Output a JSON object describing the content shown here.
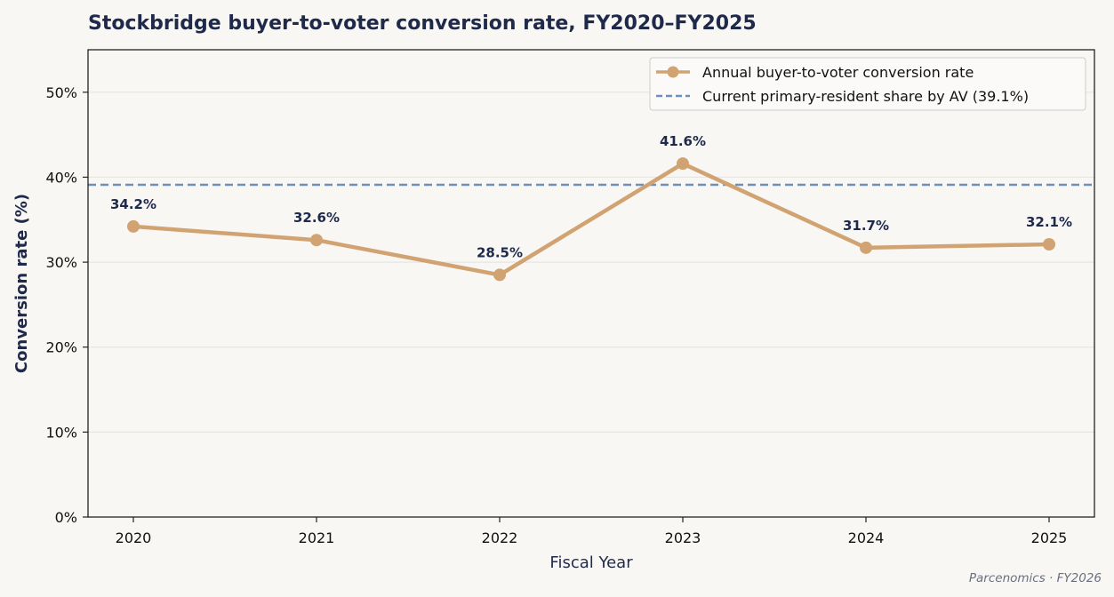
{
  "colors": {
    "background": "#f9f7f4",
    "line": "#d1a372",
    "reference": "#6c90bd",
    "text_dark": "#1f2a4b",
    "grid": "#e7e5e2"
  },
  "chart_data": {
    "type": "line",
    "title": "Stockbridge buyer-to-voter conversion rate, FY2020–FY2025",
    "xlabel": "Fiscal Year",
    "ylabel": "Conversion rate (%)",
    "categories": [
      "2020",
      "2021",
      "2022",
      "2023",
      "2024",
      "2025"
    ],
    "series": [
      {
        "name": "Annual buyer-to-voter conversion rate",
        "values": [
          34.2,
          32.6,
          28.5,
          41.6,
          31.7,
          32.1
        ],
        "labels": [
          "34.2%",
          "32.6%",
          "28.5%",
          "41.6%",
          "31.7%",
          "32.1%"
        ]
      }
    ],
    "reference_line": {
      "name": "Current primary-resident share by AV (39.1%)",
      "value": 39.1,
      "style": "dashed"
    },
    "ylim": [
      0,
      55
    ],
    "yticks": [
      0,
      10,
      20,
      30,
      40,
      50
    ],
    "ytick_labels": [
      "0%",
      "10%",
      "20%",
      "30%",
      "40%",
      "50%"
    ],
    "grid": "horizontal",
    "legend_position": "top-right"
  },
  "footer": {
    "source": "Parcenomics · FY2026"
  }
}
